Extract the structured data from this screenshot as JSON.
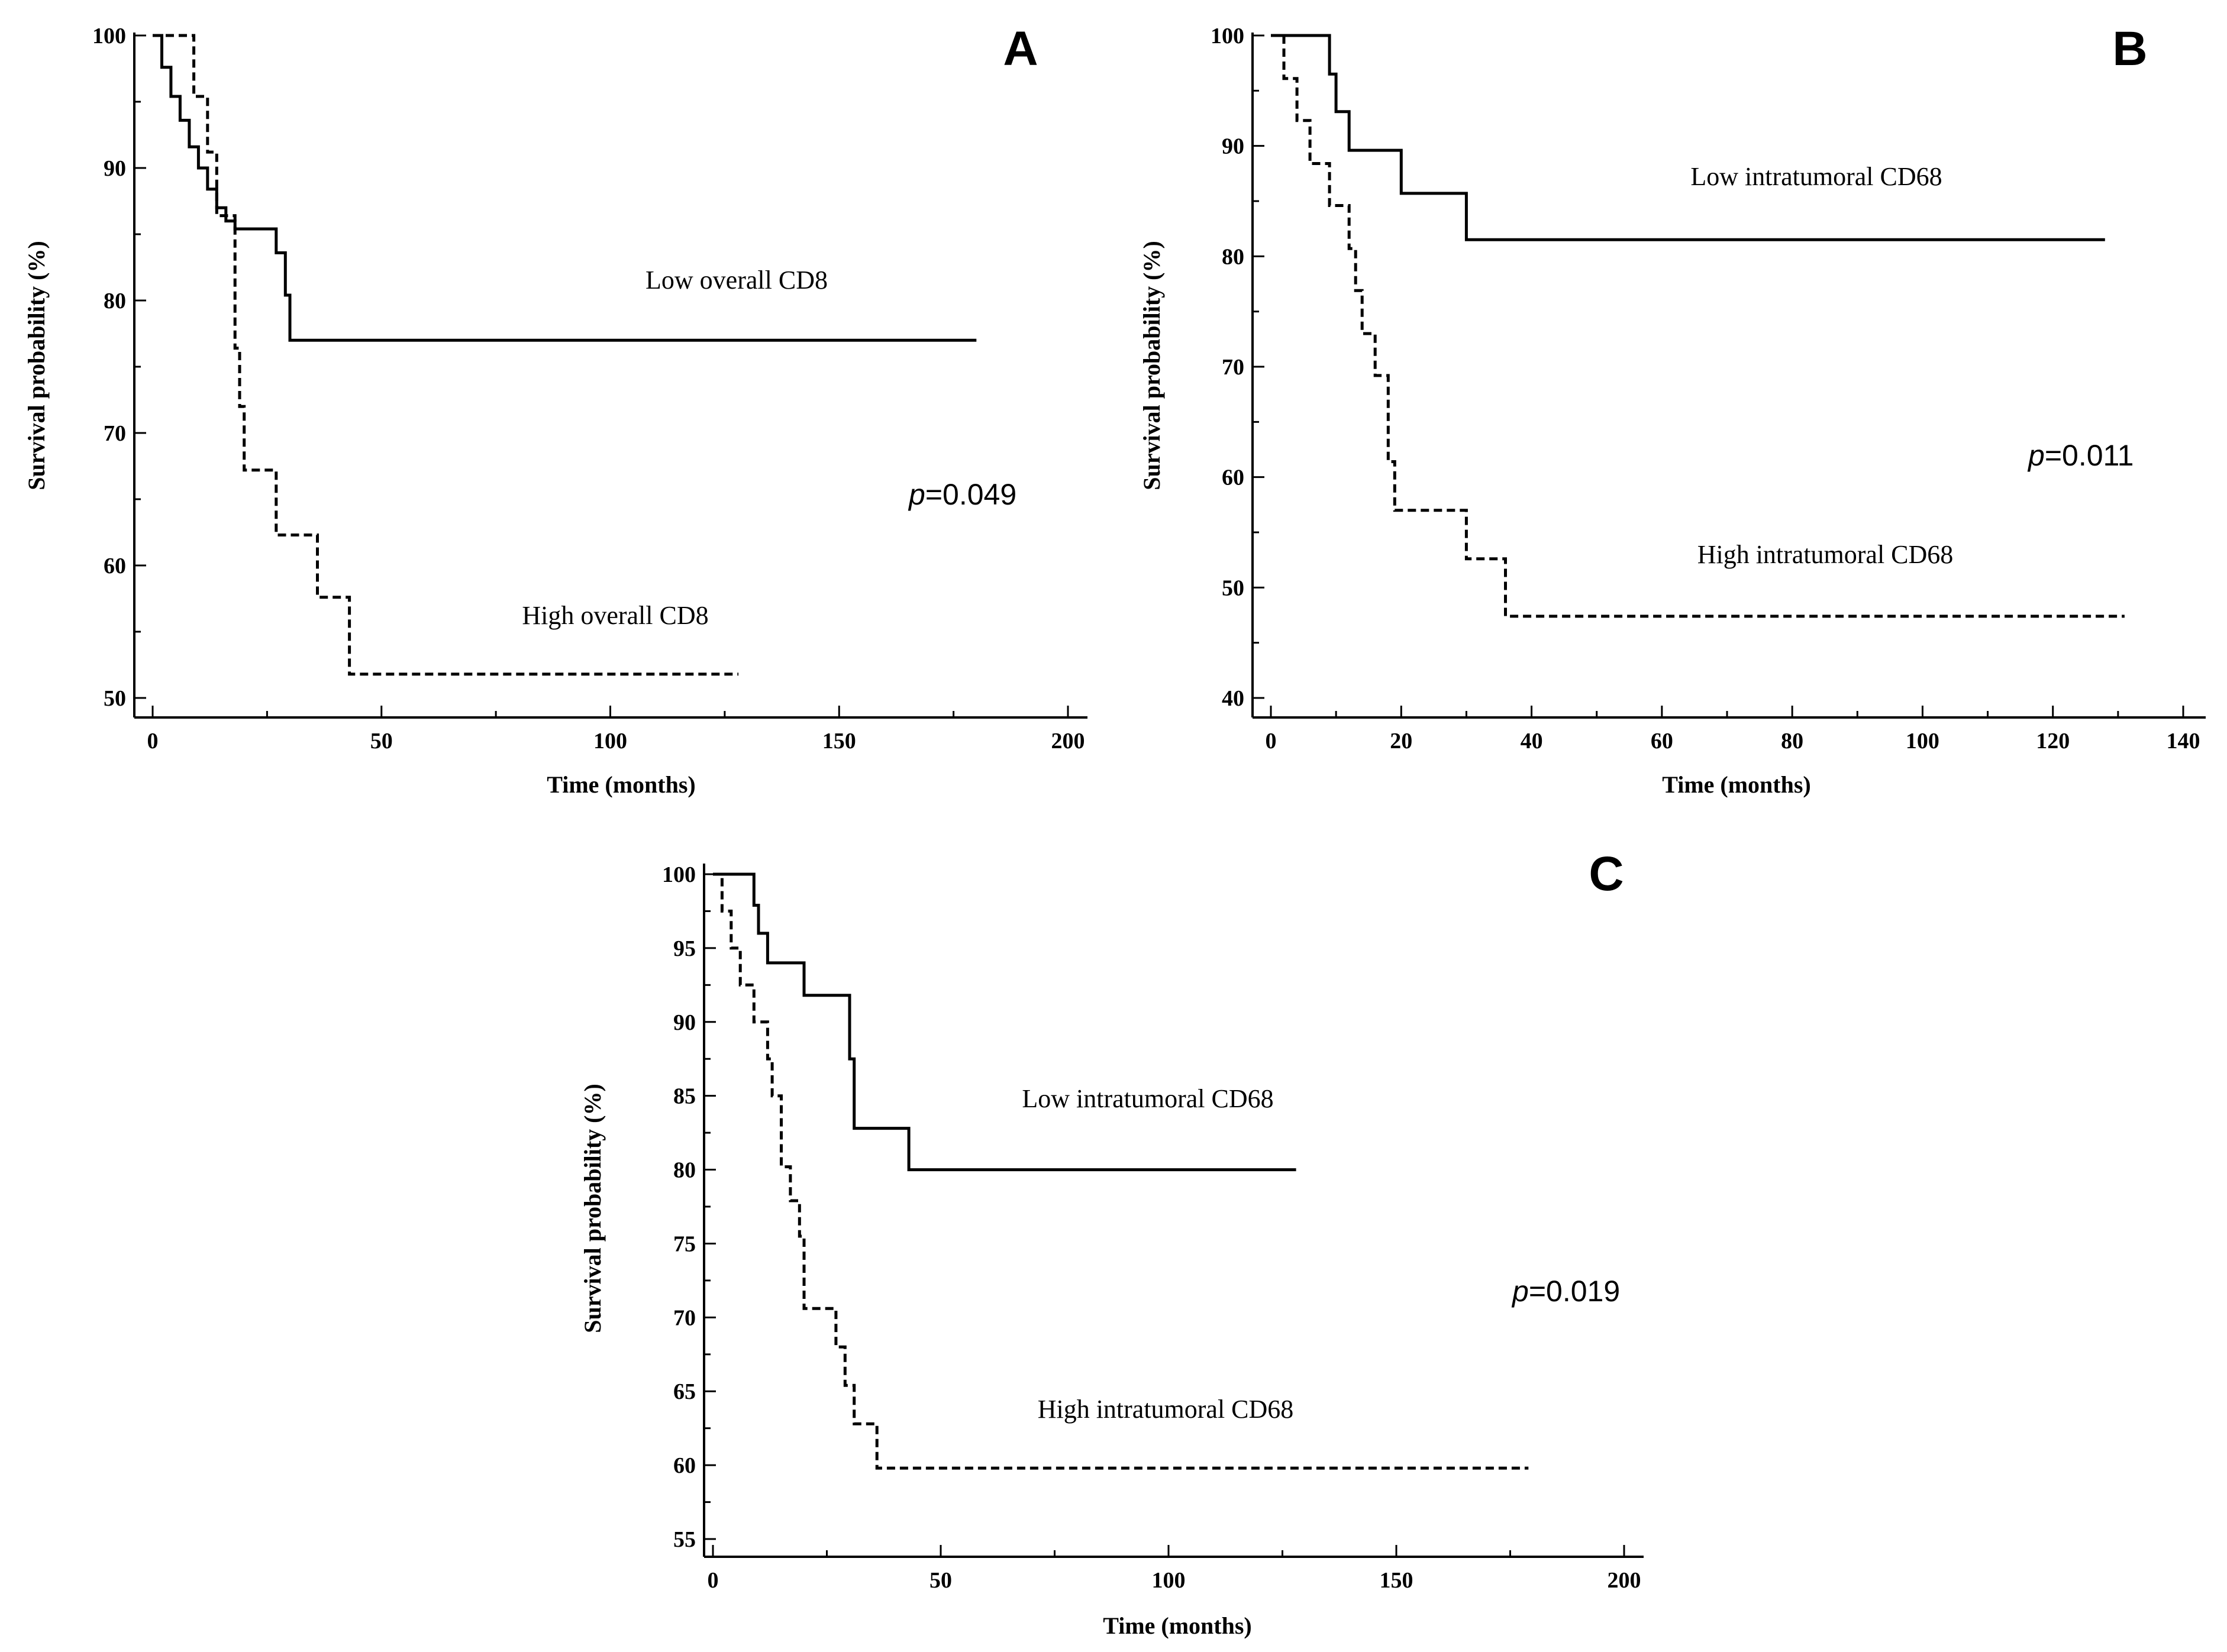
{
  "chart_data": [
    {
      "type": "line",
      "subtype": "kaplan-meier",
      "panel": "A",
      "xlabel": "Time  (months)",
      "ylabel": "Survival probability (%)",
      "xlim": [
        0,
        200
      ],
      "ylim": [
        50,
        100
      ],
      "xticks": [
        0,
        50,
        100,
        150,
        200
      ],
      "yticks": [
        50,
        60,
        70,
        80,
        90,
        100
      ],
      "p_prefix": "p",
      "p_value": "=0.049",
      "series": [
        {
          "name": "Low overall CD8",
          "style": "solid",
          "x": [
            0,
            2,
            4,
            6,
            8,
            10,
            12,
            14,
            16,
            18,
            27,
            29,
            30,
            31,
            180
          ],
          "y": [
            100,
            97.6,
            95.4,
            93.6,
            91.6,
            90,
            88.4,
            87,
            86,
            85.4,
            83.6,
            80.4,
            77,
            77,
            77
          ]
        },
        {
          "name": "High overall CD8",
          "style": "dashed",
          "x": [
            0,
            9,
            12,
            14,
            18,
            19,
            20,
            27,
            36,
            43,
            128
          ],
          "y": [
            100,
            95.4,
            91.2,
            86.4,
            76.4,
            72,
            67.2,
            62.3,
            57.6,
            51.8,
            51.8
          ]
        }
      ]
    },
    {
      "type": "line",
      "subtype": "kaplan-meier",
      "panel": "B",
      "xlabel": "Time  (months)",
      "ylabel": "Survival probability (%)",
      "xlim": [
        0,
        140
      ],
      "ylim": [
        40,
        100
      ],
      "xticks": [
        0,
        20,
        40,
        60,
        80,
        100,
        120,
        140
      ],
      "yticks": [
        40,
        50,
        60,
        70,
        80,
        90,
        100
      ],
      "p_prefix": "p",
      "p_value": "=0.011",
      "series": [
        {
          "name": "Low intratumoral CD68",
          "style": "solid",
          "x": [
            0,
            9,
            10,
            12,
            20,
            30,
            128
          ],
          "y": [
            100,
            96.5,
            93.1,
            89.6,
            85.7,
            81.5,
            81.5
          ]
        },
        {
          "name": "High intratumoral CD68",
          "style": "dashed",
          "x": [
            0,
            2,
            4,
            6,
            9,
            12,
            13,
            14,
            16,
            18,
            19,
            20,
            30,
            36,
            131
          ],
          "y": [
            100,
            96.1,
            92.3,
            88.4,
            84.6,
            80.7,
            76.9,
            73,
            69.2,
            61.4,
            57,
            57,
            52.6,
            47.4,
            47.4
          ]
        }
      ]
    },
    {
      "type": "line",
      "subtype": "kaplan-meier",
      "panel": "C",
      "xlabel": "Time  (months)",
      "ylabel": "Survival probability (%)",
      "xlim": [
        0,
        200
      ],
      "ylim": [
        55,
        100
      ],
      "xticks": [
        0,
        50,
        100,
        150,
        200
      ],
      "yticks": [
        55,
        60,
        65,
        70,
        75,
        80,
        85,
        90,
        95,
        100
      ],
      "p_prefix": "p",
      "p_value": "=0.019",
      "series": [
        {
          "name": "Low intratumoral CD68",
          "style": "solid",
          "x": [
            0,
            9,
            10,
            12,
            20,
            30,
            31,
            43,
            128
          ],
          "y": [
            100,
            97.9,
            96,
            94,
            91.8,
            87.5,
            82.8,
            80,
            80
          ]
        },
        {
          "name": "High intratumoral CD68",
          "style": "dashed",
          "x": [
            0,
            2,
            4,
            6,
            9,
            12,
            13,
            15,
            17,
            19,
            20,
            27,
            29,
            31,
            36,
            179
          ],
          "y": [
            100,
            97.5,
            95,
            92.5,
            90,
            87.5,
            85,
            80.2,
            77.9,
            75.5,
            70.6,
            68,
            65.4,
            62.8,
            59.8,
            59.8
          ]
        }
      ]
    }
  ]
}
